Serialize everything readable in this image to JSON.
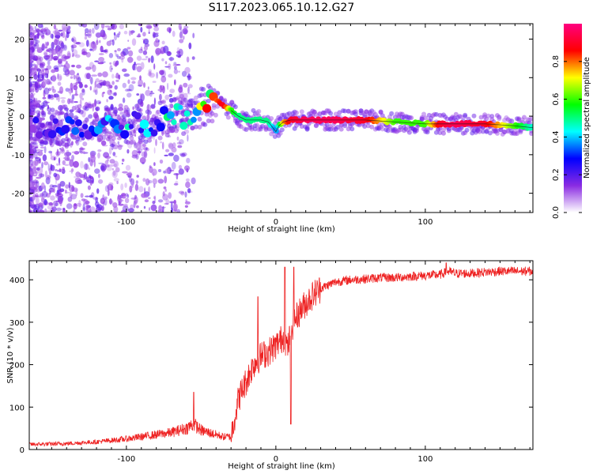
{
  "figure_title": "S117.2023.065.10.12.G27",
  "chart_data": [
    {
      "type": "heatmap",
      "xlabel": "Height of straight line (km)",
      "ylabel": "Frequency (Hz)",
      "xlim": [
        -165,
        172
      ],
      "ylim": [
        -25,
        24
      ],
      "xticks": [
        -100,
        0,
        100
      ],
      "yticks": [
        -20,
        -10,
        0,
        10,
        20
      ],
      "colorbar": {
        "label": "Normalized spectral amplitude",
        "range": [
          0,
          1
        ],
        "ticks": [
          "0.0",
          "0.2",
          "0.4",
          "0.6",
          "0.8"
        ],
        "tick_values": [
          0.0,
          0.2,
          0.4,
          0.6,
          0.8
        ],
        "colors": [
          "#ffffff",
          "#8a2be2",
          "#0000ff",
          "#00ffff",
          "#00ff00",
          "#ffff00",
          "#ff0000",
          "#ff0080"
        ]
      },
      "ridge": {
        "x": [
          -165,
          -140,
          -120,
          -100,
          -80,
          -60,
          -48,
          -40,
          -35,
          -30,
          -25,
          -20,
          -10,
          -5,
          -2,
          0,
          2,
          5,
          10,
          20,
          40,
          60,
          80,
          100,
          110,
          120,
          140,
          160,
          172
        ],
        "y": [
          -2.0,
          -2.5,
          -2.0,
          -2.0,
          -1.5,
          0.5,
          2.5,
          4.0,
          3.0,
          1.5,
          0.0,
          -1.0,
          -1.0,
          -1.5,
          -3.0,
          -4.0,
          -2.5,
          -1.5,
          -1.0,
          -1.0,
          -1.0,
          -1.0,
          -1.5,
          -2.0,
          -2.0,
          -2.0,
          -2.0,
          -2.5,
          -3.0
        ],
        "amplitude": [
          0.15,
          0.2,
          0.25,
          0.3,
          0.3,
          0.4,
          0.5,
          0.8,
          0.9,
          0.6,
          0.5,
          0.5,
          0.5,
          0.5,
          0.4,
          0.35,
          0.5,
          0.75,
          0.9,
          0.95,
          0.95,
          0.9,
          0.6,
          0.6,
          0.9,
          0.95,
          0.9,
          0.6,
          0.45
        ]
      }
    },
    {
      "type": "line",
      "xlabel": "Height of straight line (km)",
      "ylabel": "SNR (10 * v/v)",
      "xlim": [
        -165,
        172
      ],
      "ylim": [
        0,
        445
      ],
      "xticks": [
        -100,
        0,
        100
      ],
      "yticks": [
        0,
        100,
        200,
        300,
        400
      ],
      "color": "#ee2222",
      "series": [
        {
          "x": [
            -165,
            -140,
            -120,
            -100,
            -90,
            -80,
            -70,
            -60,
            -55,
            -50,
            -45,
            -40,
            -35,
            -30,
            -28,
            -25,
            -20,
            -15,
            -10,
            -5,
            0,
            5,
            8,
            10,
            12,
            15,
            20,
            25,
            30,
            40,
            50,
            60,
            70,
            80,
            90,
            100,
            110,
            115,
            120,
            130,
            140,
            150,
            160,
            172
          ],
          "y": [
            12,
            14,
            18,
            25,
            30,
            35,
            40,
            50,
            60,
            45,
            40,
            35,
            30,
            30,
            70,
            120,
            160,
            200,
            220,
            230,
            245,
            265,
            240,
            280,
            300,
            320,
            345,
            365,
            380,
            395,
            400,
            402,
            405,
            405,
            408,
            410,
            412,
            420,
            415,
            415,
            418,
            420,
            420,
            420
          ]
        }
      ],
      "spikes": [
        {
          "x": -55,
          "y": 135
        },
        {
          "x": -12,
          "y": 360
        },
        {
          "x": 6,
          "y": 430
        },
        {
          "x": 10,
          "y": 60
        },
        {
          "x": 12,
          "y": 430
        },
        {
          "x": 114,
          "y": 350
        },
        {
          "x": 114,
          "y": 440
        }
      ]
    }
  ]
}
